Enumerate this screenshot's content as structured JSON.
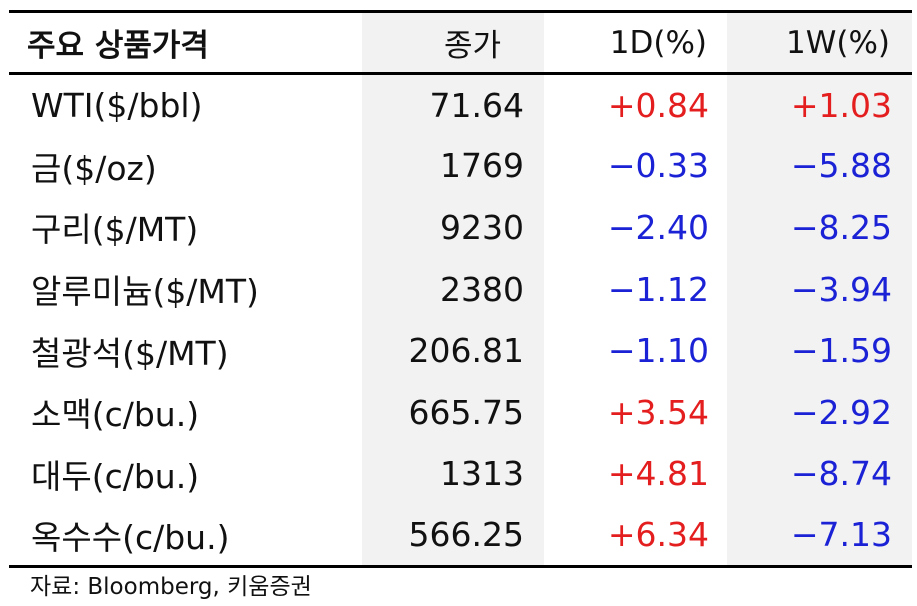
{
  "table": {
    "headers": [
      "주요 상품가격",
      "종가",
      "1D(%)",
      "1W(%)"
    ],
    "rows": [
      {
        "name": "WTI($/bbl)",
        "close": "71.64",
        "d1": "+0.84",
        "w1": "+1.03",
        "d1_color": "red",
        "w1_color": "red"
      },
      {
        "name": "금($/oz)",
        "close": "1769",
        "d1": "−0.33",
        "w1": "−5.88",
        "d1_color": "blue",
        "w1_color": "blue"
      },
      {
        "name": "구리($/MT)",
        "close": "9230",
        "d1": "−2.40",
        "w1": "−8.25",
        "d1_color": "blue",
        "w1_color": "blue"
      },
      {
        "name": "알루미늄($/MT)",
        "close": "2380",
        "d1": "−1.12",
        "w1": "−3.94",
        "d1_color": "blue",
        "w1_color": "blue"
      },
      {
        "name": "철광석($/MT)",
        "close": "206.81",
        "d1": "−1.10",
        "w1": "−1.59",
        "d1_color": "blue",
        "w1_color": "blue"
      },
      {
        "name": "소맥(c/bu.)",
        "close": "665.75",
        "d1": "+3.54",
        "w1": "−2.92",
        "d1_color": "red",
        "w1_color": "blue"
      },
      {
        "name": "대두(c/bu.)",
        "close": "1313",
        "d1": "+4.81",
        "w1": "−8.74",
        "d1_color": "red",
        "w1_color": "blue"
      },
      {
        "name": "옥수수(c/bu.)",
        "close": "566.25",
        "d1": "+6.34",
        "w1": "−7.13",
        "d1_color": "red",
        "w1_color": "blue"
      }
    ]
  },
  "source": "자료: Bloomberg, 키움증권",
  "colors": {
    "positive": "#e41e1e",
    "negative": "#1b22d6",
    "shade": "#f2f2f2"
  }
}
